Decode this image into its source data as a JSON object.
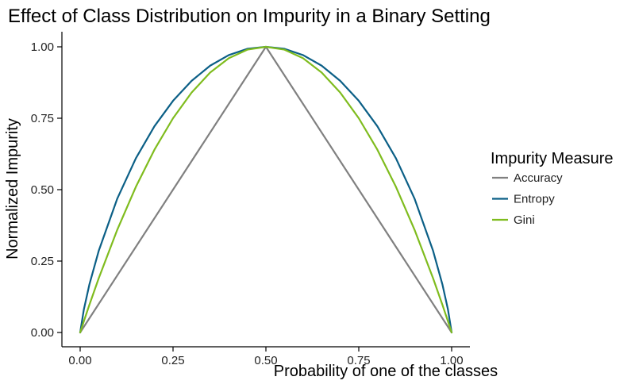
{
  "chart_data": {
    "type": "line",
    "title": "Effect of Class Distribution on Impurity in a Binary Setting",
    "xlabel": "Probability of one of the classes",
    "ylabel": "Normalized Impurity",
    "xlim": [
      0,
      1
    ],
    "ylim": [
      0,
      1
    ],
    "x_ticks": [
      0,
      0.25,
      0.5,
      0.75,
      1
    ],
    "x_tick_labels": [
      "0.00",
      "0.25",
      "0.50",
      "0.75",
      "1.00"
    ],
    "y_ticks": [
      0,
      0.25,
      0.5,
      0.75,
      1
    ],
    "y_tick_labels": [
      "0.00",
      "0.25",
      "0.50",
      "0.75",
      "1.00"
    ],
    "grid": false,
    "legend": {
      "title": "Impurity Measure",
      "placement": "right"
    },
    "series": [
      {
        "name": "Accuracy",
        "color": "#808080",
        "x": [
          0,
          0.5,
          1
        ],
        "y": [
          0,
          1,
          0
        ]
      },
      {
        "name": "Entropy",
        "color": "#0b5f86",
        "x": [
          0,
          0.01,
          0.025,
          0.05,
          0.1,
          0.15,
          0.2,
          0.25,
          0.3,
          0.35,
          0.4,
          0.45,
          0.5,
          0.55,
          0.6,
          0.65,
          0.7,
          0.75,
          0.8,
          0.85,
          0.9,
          0.95,
          0.975,
          0.99,
          1
        ],
        "y": [
          0,
          0.081,
          0.169,
          0.286,
          0.469,
          0.61,
          0.722,
          0.811,
          0.881,
          0.934,
          0.971,
          0.993,
          1,
          0.993,
          0.971,
          0.934,
          0.881,
          0.811,
          0.722,
          0.61,
          0.469,
          0.286,
          0.169,
          0.081,
          0
        ]
      },
      {
        "name": "Gini",
        "color": "#7fbc1e",
        "x": [
          0,
          0.01,
          0.025,
          0.05,
          0.1,
          0.15,
          0.2,
          0.25,
          0.3,
          0.35,
          0.4,
          0.45,
          0.5,
          0.55,
          0.6,
          0.65,
          0.7,
          0.75,
          0.8,
          0.85,
          0.9,
          0.95,
          0.975,
          0.99,
          1
        ],
        "y": [
          0,
          0.0396,
          0.0975,
          0.19,
          0.36,
          0.51,
          0.64,
          0.75,
          0.84,
          0.91,
          0.96,
          0.99,
          1,
          0.99,
          0.96,
          0.91,
          0.84,
          0.75,
          0.64,
          0.51,
          0.36,
          0.19,
          0.0975,
          0.0396,
          0
        ]
      }
    ]
  }
}
